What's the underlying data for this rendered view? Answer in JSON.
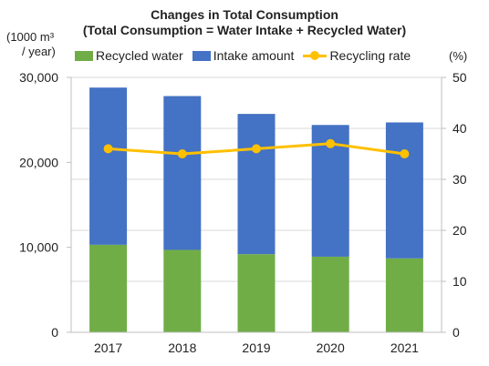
{
  "chart_data": {
    "type": "bar",
    "title_line1": "Changes  in Total Consumption",
    "title_line2": "(Total Consumption = Water Intake + Recycled Water)",
    "left_unit_line1": "(1000 m³",
    "left_unit_line2": "/ year)",
    "right_unit": "(%)",
    "categories": [
      "2017",
      "2018",
      "2019",
      "2020",
      "2021"
    ],
    "series": [
      {
        "name": "Recycled water",
        "type": "bar",
        "stack": "total",
        "axis": "left",
        "color": "#70AD47",
        "values": [
          10300,
          9700,
          9200,
          8900,
          8700
        ]
      },
      {
        "name": "Intake amount",
        "type": "bar",
        "stack": "total",
        "axis": "left",
        "color": "#4472C4",
        "values": [
          18500,
          18100,
          16500,
          15500,
          16000
        ]
      },
      {
        "name": "Recycling rate",
        "type": "line",
        "axis": "right",
        "color": "#FFC000",
        "values": [
          36,
          35,
          36,
          37,
          35
        ]
      }
    ],
    "left_axis": {
      "ylim": [
        0,
        30000
      ],
      "ticks": [
        "0",
        "10,000",
        "20,000",
        "30,000"
      ],
      "tick_values": [
        0,
        10000,
        20000,
        30000
      ]
    },
    "right_axis": {
      "ylim": [
        0,
        50
      ],
      "ticks": [
        "0",
        "10",
        "20",
        "30",
        "40",
        "50"
      ],
      "tick_values": [
        0,
        10,
        20,
        30,
        40,
        50
      ]
    },
    "grid": true,
    "legend_position": "top"
  }
}
